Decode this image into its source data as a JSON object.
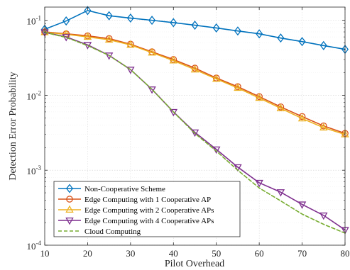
{
  "chart_data": {
    "type": "line",
    "xlabel": "Pilot Overhead",
    "ylabel": "Detection Error Probability",
    "xlim": [
      10,
      80
    ],
    "ylim": [
      0.0001,
      0.15
    ],
    "y_scale": "log",
    "x_ticks": [
      10,
      20,
      30,
      40,
      50,
      60,
      70,
      80
    ],
    "y_ticks": [
      {
        "value": 0.0001,
        "base": "10",
        "exp": "-4"
      },
      {
        "value": 0.001,
        "base": "10",
        "exp": "-3"
      },
      {
        "value": 0.01,
        "base": "10",
        "exp": "-2"
      },
      {
        "value": 0.1,
        "base": "10",
        "exp": "-1"
      }
    ],
    "grid": true,
    "legend_position": "bottom-left",
    "x": [
      10,
      15,
      20,
      25,
      30,
      35,
      40,
      45,
      50,
      55,
      60,
      65,
      70,
      75,
      80
    ],
    "series": [
      {
        "name": "Non-Cooperative Scheme",
        "color": "#0072BD",
        "marker": "diamond",
        "dash": "solid",
        "values": [
          0.076,
          0.098,
          0.135,
          0.115,
          0.107,
          0.1,
          0.093,
          0.086,
          0.079,
          0.072,
          0.066,
          0.058,
          0.052,
          0.046,
          0.041
        ]
      },
      {
        "name": "Edge Computing with 1 Cooperative AP",
        "color": "#D95319",
        "marker": "circle",
        "dash": "solid",
        "values": [
          0.07,
          0.066,
          0.062,
          0.057,
          0.048,
          0.038,
          0.03,
          0.023,
          0.017,
          0.013,
          0.0096,
          0.007,
          0.0052,
          0.0039,
          0.0031
        ]
      },
      {
        "name": "Edge Computing with 2 Cooperative APs",
        "color": "#EDB120",
        "marker": "triangle-up",
        "dash": "solid",
        "values": [
          0.069,
          0.065,
          0.06,
          0.055,
          0.047,
          0.037,
          0.029,
          0.022,
          0.0165,
          0.0125,
          0.0092,
          0.0067,
          0.0049,
          0.0037,
          0.003
        ]
      },
      {
        "name": "Edge Computing with 4 Cooperative APs",
        "color": "#7E2F8E",
        "marker": "triangle-down",
        "dash": "solid",
        "values": [
          0.069,
          0.06,
          0.047,
          0.034,
          0.022,
          0.012,
          0.006,
          0.0032,
          0.0019,
          0.0011,
          0.00068,
          0.00051,
          0.00035,
          0.00025,
          0.00016
        ]
      },
      {
        "name": "Cloud Computing",
        "color": "#77AC30",
        "marker": "none",
        "dash": "dashed",
        "values": [
          0.069,
          0.059,
          0.046,
          0.034,
          0.022,
          0.012,
          0.006,
          0.0031,
          0.0018,
          0.001,
          0.00058,
          0.00039,
          0.00026,
          0.00019,
          0.000145
        ]
      }
    ]
  }
}
